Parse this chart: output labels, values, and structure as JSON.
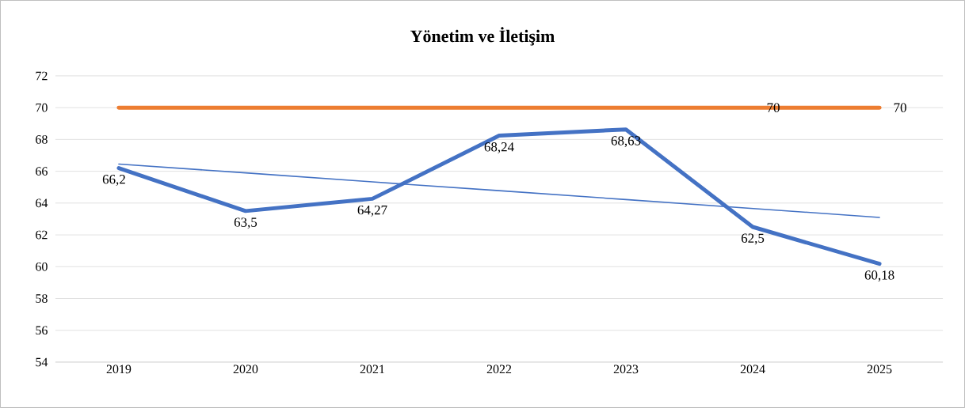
{
  "chart_data": {
    "type": "line",
    "title": "Yönetim ve İletişim",
    "categories": [
      "2019",
      "2020",
      "2021",
      "2022",
      "2023",
      "2024",
      "2025"
    ],
    "series": [
      {
        "color": "#4472c4",
        "values": [
          66.2,
          63.5,
          64.27,
          68.24,
          68.63,
          62.5,
          60.18
        ],
        "value_labels": [
          "66,2",
          "63,5",
          "64,27",
          "68,24",
          "68,63",
          "62,5",
          "60,18"
        ]
      },
      {
        "color": "#ed7d31",
        "values": [
          70,
          70,
          70,
          70,
          70,
          70,
          70
        ],
        "value_labels": [
          null,
          null,
          null,
          null,
          null,
          "70",
          "70"
        ]
      },
      {
        "color": "#4472c4",
        "values": [
          66.45,
          65.9,
          65.33,
          64.78,
          64.22,
          63.66,
          63.1
        ]
      }
    ],
    "ylim": [
      54,
      72
    ],
    "yticks": [
      54,
      56,
      58,
      60,
      62,
      64,
      66,
      68,
      70,
      72
    ],
    "grid": "y",
    "marker": "none",
    "line_style": "solid"
  }
}
